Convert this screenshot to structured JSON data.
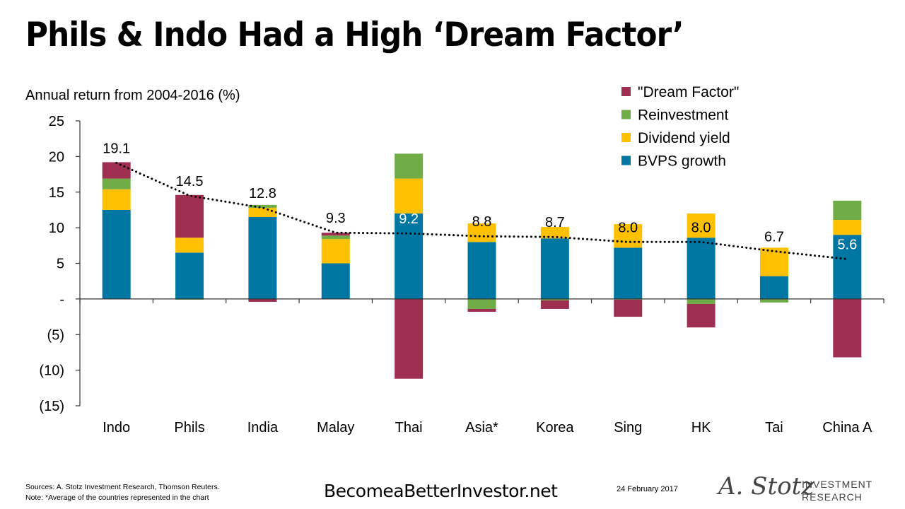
{
  "title": "Phils & Indo Had a High ‘Dream Factor’",
  "footer": {
    "sources": "Sources: A. Stotz Investment Research, Thomson Reuters.",
    "note": "Note:  *Average of the countries represented  in the chart",
    "site": "BecomeaBetterInvestor.net",
    "date": "24 February 2017",
    "logo_signature": "A. Stotz",
    "logo_line1": "INVESTMENT",
    "logo_line2": "RESEARCH"
  },
  "chart_data": {
    "type": "bar",
    "stacked": true,
    "ylabel": "Annual return from 2004-2016 (%)",
    "ylim": [
      -15,
      25
    ],
    "yticks": [
      25,
      20,
      15,
      10,
      5,
      0,
      -5,
      -10,
      -15
    ],
    "ytick_labels": [
      "25",
      "20",
      "15",
      "10",
      "5",
      "-",
      "(5)",
      "(10)",
      "(15)"
    ],
    "grid": false,
    "legend_position": "top-right",
    "categories": [
      "Indo",
      "Phils",
      "India",
      "Malay",
      "Thai",
      "Asia*",
      "Korea",
      "Sing",
      "HK",
      "Tai",
      "China A"
    ],
    "series": [
      {
        "name": "BVPS growth",
        "color": "#0077A3",
        "values": [
          12.5,
          6.5,
          11.5,
          5.0,
          12.0,
          8.0,
          8.5,
          7.2,
          8.6,
          3.2,
          9.0
        ]
      },
      {
        "name": "Dividend yield",
        "color": "#FFC000",
        "values": [
          2.9,
          2.1,
          1.3,
          3.4,
          4.9,
          2.6,
          1.6,
          3.3,
          3.4,
          4.0,
          2.1
        ]
      },
      {
        "name": "Reinvestment",
        "color": "#70AD47",
        "values": [
          1.5,
          -0.1,
          0.4,
          0.5,
          3.5,
          -1.4,
          -0.2,
          -0.1,
          -0.7,
          -0.5,
          2.7
        ]
      },
      {
        "name": "\"Dream Factor\"",
        "color": "#9E2F50",
        "values": [
          2.3,
          6.0,
          -0.4,
          0.4,
          -11.2,
          -0.4,
          -1.2,
          -2.4,
          -3.3,
          0.0,
          -8.2
        ]
      }
    ],
    "totals": {
      "values": [
        19.1,
        14.5,
        12.8,
        9.3,
        9.2,
        8.8,
        8.7,
        8.0,
        8.0,
        6.7,
        5.6
      ],
      "labels": [
        "19.1",
        "14.5",
        "12.8",
        "9.3",
        "9.2",
        "8.8",
        "8.7",
        "8.0",
        "8.0",
        "6.7",
        "5.6"
      ],
      "label_colors": [
        "#000000",
        "#000000",
        "#000000",
        "#000000",
        "#FFFFFF",
        "#000000",
        "#000000",
        "#000000",
        "#000000",
        "#000000",
        "#FFFFFF"
      ],
      "line_style": "dotted"
    },
    "legend_order": [
      "\"Dream Factor\"",
      "Reinvestment",
      "Dividend yield",
      "BVPS growth"
    ]
  }
}
